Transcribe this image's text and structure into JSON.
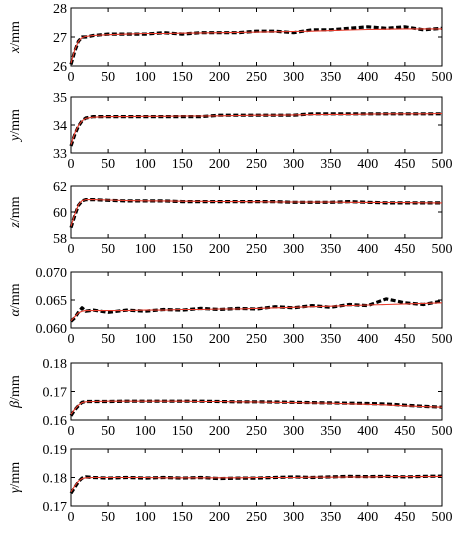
{
  "chart_data": [
    {
      "type": "line",
      "ylabel_symbol": "x",
      "ylabel_unit": "/mm",
      "xlim": [
        0,
        500
      ],
      "ylim": [
        26,
        28
      ],
      "xticks": [
        "0",
        "50",
        "100",
        "150",
        "200",
        "250",
        "300",
        "350",
        "400",
        "450",
        "500"
      ],
      "yticks": [
        "26",
        "27",
        "28"
      ],
      "ytick_values": [
        26,
        27,
        28
      ],
      "colors": {
        "measured": "#000000",
        "fitted": "#e83a2a"
      },
      "series": [
        {
          "style": "dashed-thick",
          "color": "#000000",
          "x": [
            0,
            5,
            10,
            15,
            20,
            30,
            50,
            75,
            100,
            125,
            150,
            175,
            200,
            225,
            250,
            275,
            300,
            325,
            350,
            375,
            400,
            425,
            450,
            475,
            500
          ],
          "y": [
            26.05,
            26.5,
            26.85,
            27.0,
            27.0,
            27.05,
            27.1,
            27.1,
            27.1,
            27.15,
            27.1,
            27.15,
            27.15,
            27.15,
            27.2,
            27.2,
            27.15,
            27.25,
            27.25,
            27.3,
            27.35,
            27.3,
            27.35,
            27.25,
            27.3
          ]
        },
        {
          "style": "solid-thin",
          "color": "#e83a2a",
          "x": [
            0,
            5,
            10,
            15,
            20,
            30,
            50,
            75,
            100,
            125,
            150,
            175,
            200,
            225,
            250,
            275,
            300,
            325,
            350,
            375,
            400,
            425,
            450,
            475,
            500
          ],
          "y": [
            26.1,
            26.55,
            26.85,
            26.98,
            27.02,
            27.05,
            27.08,
            27.1,
            27.12,
            27.12,
            27.13,
            27.14,
            27.15,
            27.16,
            27.17,
            27.18,
            27.19,
            27.2,
            27.22,
            27.24,
            27.26,
            27.27,
            27.28,
            27.28,
            27.28
          ]
        }
      ]
    },
    {
      "type": "line",
      "ylabel_symbol": "y",
      "ylabel_unit": "/mm",
      "xlim": [
        0,
        500
      ],
      "ylim": [
        33,
        35
      ],
      "xticks": [
        "0",
        "50",
        "100",
        "150",
        "200",
        "250",
        "300",
        "350",
        "400",
        "450",
        "500"
      ],
      "yticks": [
        "33",
        "34",
        "35"
      ],
      "ytick_values": [
        33,
        34,
        35
      ],
      "colors": {
        "measured": "#000000",
        "fitted": "#e83a2a"
      },
      "series": [
        {
          "style": "dashed-thick",
          "color": "#000000",
          "x": [
            0,
            5,
            10,
            15,
            20,
            30,
            50,
            75,
            100,
            125,
            150,
            175,
            200,
            225,
            250,
            275,
            300,
            325,
            350,
            375,
            400,
            425,
            450,
            475,
            500
          ],
          "y": [
            33.25,
            33.65,
            33.95,
            34.15,
            34.25,
            34.3,
            34.3,
            34.3,
            34.3,
            34.3,
            34.3,
            34.3,
            34.35,
            34.35,
            34.35,
            34.35,
            34.35,
            34.4,
            34.4,
            34.4,
            34.4,
            34.4,
            34.4,
            34.4,
            34.4
          ]
        },
        {
          "style": "solid-thin",
          "color": "#e83a2a",
          "x": [
            0,
            5,
            10,
            15,
            20,
            30,
            50,
            75,
            100,
            125,
            150,
            175,
            200,
            225,
            250,
            275,
            300,
            325,
            350,
            375,
            400,
            425,
            450,
            475,
            500
          ],
          "y": [
            33.3,
            33.7,
            33.98,
            34.15,
            34.24,
            34.28,
            34.3,
            34.3,
            34.31,
            34.31,
            34.32,
            34.32,
            34.33,
            34.34,
            34.35,
            34.35,
            34.36,
            34.37,
            34.38,
            34.38,
            34.39,
            34.4,
            34.4,
            34.4,
            34.41
          ]
        }
      ]
    },
    {
      "type": "line",
      "ylabel_symbol": "z",
      "ylabel_unit": "/mm",
      "xlim": [
        0,
        500
      ],
      "ylim": [
        58,
        62
      ],
      "xticks": [
        "0",
        "50",
        "100",
        "150",
        "200",
        "250",
        "300",
        "350",
        "400",
        "450",
        "500"
      ],
      "yticks": [
        "58",
        "60",
        "62"
      ],
      "ytick_values": [
        58,
        60,
        62
      ],
      "colors": {
        "measured": "#000000",
        "fitted": "#e83a2a"
      },
      "series": [
        {
          "style": "dashed-thick",
          "color": "#000000",
          "x": [
            0,
            5,
            10,
            15,
            20,
            30,
            50,
            75,
            100,
            125,
            150,
            175,
            200,
            225,
            250,
            275,
            300,
            325,
            350,
            375,
            400,
            425,
            450,
            475,
            500
          ],
          "y": [
            58.8,
            59.7,
            60.5,
            60.85,
            60.95,
            60.95,
            60.9,
            60.85,
            60.85,
            60.85,
            60.8,
            60.8,
            60.8,
            60.8,
            60.8,
            60.8,
            60.75,
            60.75,
            60.75,
            60.8,
            60.75,
            60.7,
            60.7,
            60.7,
            60.7
          ]
        },
        {
          "style": "solid-thin",
          "color": "#e83a2a",
          "x": [
            0,
            5,
            10,
            15,
            20,
            30,
            50,
            75,
            100,
            125,
            150,
            175,
            200,
            225,
            250,
            275,
            300,
            325,
            350,
            375,
            400,
            425,
            450,
            475,
            500
          ],
          "y": [
            58.9,
            59.8,
            60.55,
            60.88,
            60.95,
            60.95,
            60.92,
            60.88,
            60.86,
            60.85,
            60.83,
            60.82,
            60.81,
            60.8,
            60.79,
            60.78,
            60.77,
            60.76,
            60.76,
            60.75,
            60.74,
            60.73,
            60.72,
            60.71,
            60.7
          ]
        }
      ]
    },
    {
      "type": "line",
      "ylabel_symbol": "α",
      "ylabel_unit": "/mm",
      "xlim": [
        0,
        500
      ],
      "ylim": [
        0.06,
        0.07
      ],
      "xticks": [
        "0",
        "50",
        "100",
        "150",
        "200",
        "250",
        "300",
        "350",
        "400",
        "450",
        "500"
      ],
      "yticks": [
        "0.060",
        "0.065",
        "0.070"
      ],
      "ytick_values": [
        0.06,
        0.065,
        0.07
      ],
      "colors": {
        "measured": "#000000",
        "fitted": "#e83a2a"
      },
      "series": [
        {
          "style": "dashed-thick",
          "color": "#000000",
          "x": [
            0,
            5,
            10,
            15,
            20,
            30,
            50,
            75,
            100,
            125,
            150,
            175,
            200,
            225,
            250,
            275,
            300,
            325,
            350,
            375,
            400,
            425,
            450,
            475,
            500
          ],
          "y": [
            0.0612,
            0.0618,
            0.0628,
            0.0636,
            0.063,
            0.0632,
            0.0628,
            0.0632,
            0.063,
            0.0633,
            0.0632,
            0.0635,
            0.0633,
            0.0635,
            0.0634,
            0.0638,
            0.0636,
            0.064,
            0.0637,
            0.0642,
            0.064,
            0.0652,
            0.0645,
            0.0642,
            0.0648
          ]
        },
        {
          "style": "solid-thin",
          "color": "#e83a2a",
          "x": [
            0,
            5,
            10,
            15,
            20,
            30,
            50,
            75,
            100,
            125,
            150,
            175,
            200,
            225,
            250,
            275,
            300,
            325,
            350,
            375,
            400,
            425,
            450,
            475,
            500
          ],
          "y": [
            0.0613,
            0.062,
            0.0627,
            0.063,
            0.0631,
            0.0631,
            0.0631,
            0.0631,
            0.0632,
            0.0632,
            0.0633,
            0.0633,
            0.0634,
            0.0634,
            0.0635,
            0.0636,
            0.0637,
            0.0638,
            0.0639,
            0.064,
            0.0641,
            0.0642,
            0.0643,
            0.0644,
            0.0645
          ]
        }
      ]
    },
    {
      "type": "line",
      "ylabel_symbol": "β",
      "ylabel_unit": "/mm",
      "xlim": [
        0,
        500
      ],
      "ylim": [
        0.16,
        0.18
      ],
      "xticks": [
        "0",
        "50",
        "100",
        "150",
        "200",
        "250",
        "300",
        "350",
        "400",
        "450",
        "500"
      ],
      "yticks": [
        "0.16",
        "0.17",
        "0.18"
      ],
      "ytick_values": [
        0.16,
        0.17,
        0.18
      ],
      "colors": {
        "measured": "#000000",
        "fitted": "#e83a2a"
      },
      "series": [
        {
          "style": "dashed-thick",
          "color": "#000000",
          "x": [
            0,
            5,
            10,
            15,
            20,
            30,
            50,
            75,
            100,
            125,
            150,
            175,
            200,
            225,
            250,
            275,
            300,
            325,
            350,
            375,
            400,
            425,
            450,
            475,
            500
          ],
          "y": [
            0.1615,
            0.1635,
            0.165,
            0.1662,
            0.1665,
            0.1665,
            0.1665,
            0.1666,
            0.1666,
            0.1666,
            0.1666,
            0.1666,
            0.1665,
            0.1664,
            0.1664,
            0.1663,
            0.1662,
            0.1661,
            0.166,
            0.1659,
            0.1658,
            0.1656,
            0.1652,
            0.1648,
            0.1645
          ]
        },
        {
          "style": "solid-thin",
          "color": "#e83a2a",
          "x": [
            0,
            5,
            10,
            15,
            20,
            30,
            50,
            75,
            100,
            125,
            150,
            175,
            200,
            225,
            250,
            275,
            300,
            325,
            350,
            375,
            400,
            425,
            450,
            475,
            500
          ],
          "y": [
            0.162,
            0.1638,
            0.1652,
            0.1661,
            0.1664,
            0.1665,
            0.1666,
            0.1666,
            0.1666,
            0.1666,
            0.1666,
            0.1665,
            0.1665,
            0.1664,
            0.1663,
            0.1662,
            0.1661,
            0.166,
            0.1659,
            0.1657,
            0.1655,
            0.1653,
            0.165,
            0.1647,
            0.1645
          ]
        }
      ]
    },
    {
      "type": "line",
      "ylabel_symbol": "γ",
      "ylabel_unit": "/mm",
      "xlim": [
        0,
        500
      ],
      "ylim": [
        0.17,
        0.19
      ],
      "xticks": [
        "0",
        "50",
        "100",
        "150",
        "200",
        "250",
        "300",
        "350",
        "400",
        "450",
        "500"
      ],
      "yticks": [
        "0.17",
        "0.18",
        "0.19"
      ],
      "ytick_values": [
        0.17,
        0.18,
        0.19
      ],
      "colors": {
        "measured": "#000000",
        "fitted": "#e83a2a"
      },
      "series": [
        {
          "style": "dashed-thick",
          "color": "#000000",
          "x": [
            0,
            5,
            10,
            15,
            20,
            30,
            50,
            75,
            100,
            125,
            150,
            175,
            200,
            225,
            250,
            275,
            300,
            325,
            350,
            375,
            400,
            425,
            450,
            475,
            500
          ],
          "y": [
            0.1745,
            0.1765,
            0.1785,
            0.1798,
            0.1802,
            0.18,
            0.1798,
            0.18,
            0.1798,
            0.18,
            0.1798,
            0.18,
            0.1796,
            0.1798,
            0.1798,
            0.18,
            0.1802,
            0.18,
            0.1802,
            0.1804,
            0.1803,
            0.1804,
            0.1802,
            0.1804,
            0.1805
          ]
        },
        {
          "style": "solid-thin",
          "color": "#e83a2a",
          "x": [
            0,
            5,
            10,
            15,
            20,
            30,
            50,
            75,
            100,
            125,
            150,
            175,
            200,
            225,
            250,
            275,
            300,
            325,
            350,
            375,
            400,
            425,
            450,
            475,
            500
          ],
          "y": [
            0.175,
            0.177,
            0.1787,
            0.1796,
            0.1799,
            0.18,
            0.18,
            0.18,
            0.18,
            0.1799,
            0.1799,
            0.1799,
            0.1799,
            0.1799,
            0.18,
            0.18,
            0.18,
            0.1801,
            0.1801,
            0.1802,
            0.1802,
            0.1803,
            0.1803,
            0.1803,
            0.1804
          ]
        }
      ]
    }
  ]
}
